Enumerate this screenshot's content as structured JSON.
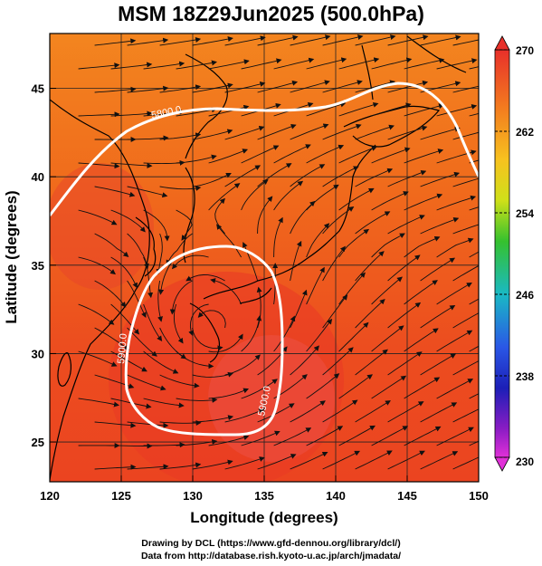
{
  "title": "MSM 18Z29Jun2025 (500.0hPa)",
  "axes": {
    "xlabel": "Longitude (degrees)",
    "ylabel": "Latitude  (degrees)",
    "xticks": [
      "120",
      "125",
      "130",
      "135",
      "140",
      "145",
      "150"
    ],
    "yticks": [
      "25",
      "30",
      "35",
      "40",
      "45"
    ]
  },
  "colorbar": {
    "ticks": [
      "270",
      "262",
      "254",
      "246",
      "238",
      "230"
    ],
    "max": 270,
    "min": 230
  },
  "contours": [
    {
      "label": "5800.0"
    },
    {
      "label": "5900.0"
    },
    {
      "label": "5900.0"
    }
  ],
  "credits": [
    "Drawing by DCL (https://www.gfd-dennou.org/library/dcl/)",
    "Data from http://database.rish.kyoto-u.ac.jp/arch/jmadata/"
  ],
  "colors": {
    "field_main": "#f05a1c",
    "field_north": "#f27a1e",
    "field_warm": "#ea3a26",
    "contour": "#ffffff",
    "streamline": "#111111",
    "coast": "#000000"
  }
}
